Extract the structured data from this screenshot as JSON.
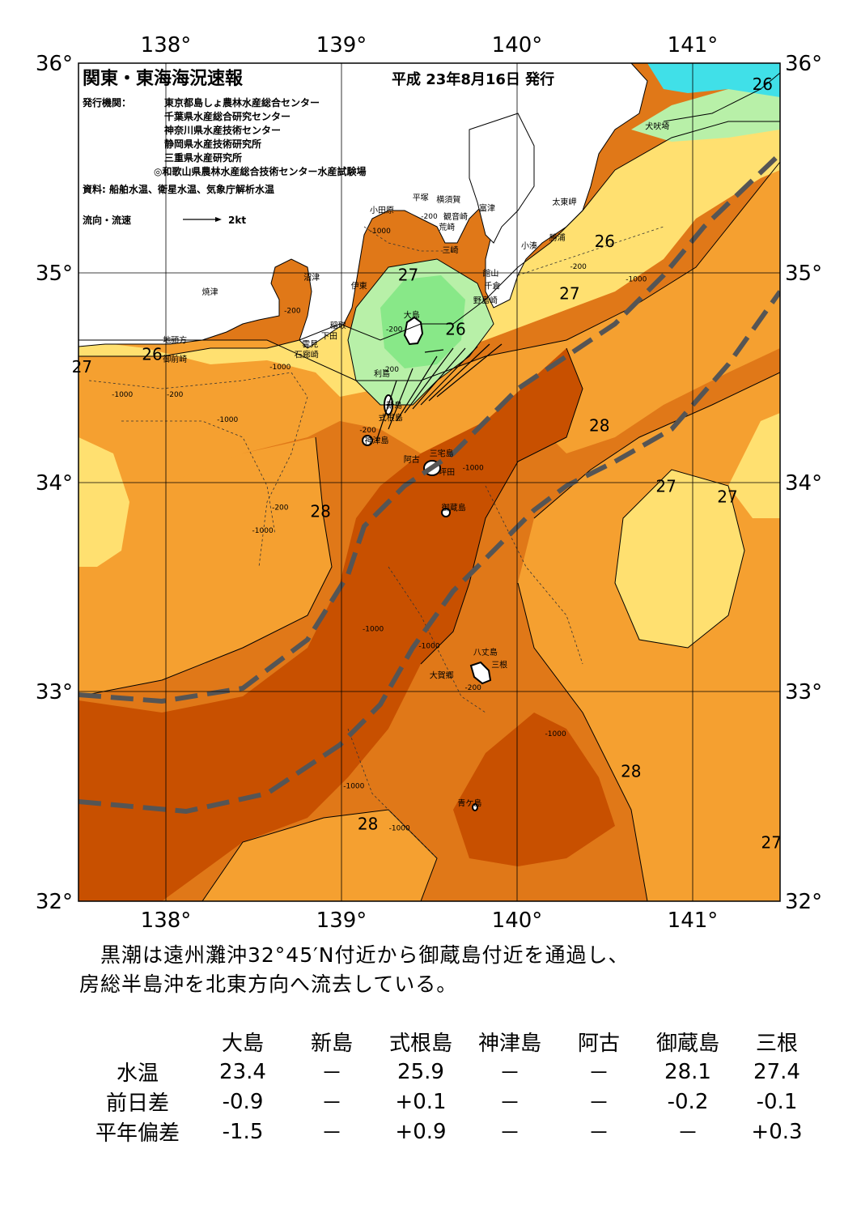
{
  "header": {
    "title": "関東・東海海況速報",
    "issue_date": "平成 23年8月16日 発行",
    "issuer_label": "発行機関：",
    "issuers": [
      "東京都島しょ農林水産総合センター",
      "千葉県水産総合研究センター",
      "神奈川県水産技術センター",
      "静岡県水産技術研究所",
      "三重県水産研究所",
      "◎和歌山県農林水産総合技術センター水産試験場"
    ],
    "sources": "資料: 船舶水温、衛星水温、気象庁解析水温",
    "flow_legend_label": "流向・流速",
    "flow_legend_speed": "2kt"
  },
  "axes": {
    "lon_labels": [
      "138°",
      "139°",
      "140°",
      "141°"
    ],
    "lat_labels": [
      "36°",
      "35°",
      "34°",
      "33°",
      "32°"
    ],
    "lon_range": [
      137.5,
      141.5
    ],
    "lat_range": [
      32,
      36
    ]
  },
  "colors": {
    "t24_25": "#88e888",
    "t25_26": "#b8f0a8",
    "t26_27": "#ffe070",
    "t27_28": "#f5a030",
    "t28_29": "#e07818",
    "t29": "#c85000",
    "land": "#ffffff",
    "cold": "#40e0e8",
    "kuroshio_axis": "#555555"
  },
  "isotherm_labels": [
    {
      "text": "26",
      "lon": 141.4,
      "lat": 35.9
    },
    {
      "text": "26",
      "lon": 140.5,
      "lat": 35.15
    },
    {
      "text": "27",
      "lon": 139.38,
      "lat": 34.99
    },
    {
      "text": "27",
      "lon": 140.3,
      "lat": 34.9
    },
    {
      "text": "26",
      "lon": 139.65,
      "lat": 34.73
    },
    {
      "text": "26",
      "lon": 137.92,
      "lat": 34.61
    },
    {
      "text": "27",
      "lon": 137.52,
      "lat": 34.55
    },
    {
      "text": "28",
      "lon": 140.47,
      "lat": 34.27
    },
    {
      "text": "27",
      "lon": 140.85,
      "lat": 33.98
    },
    {
      "text": "27",
      "lon": 141.2,
      "lat": 33.93
    },
    {
      "text": "28",
      "lon": 138.88,
      "lat": 33.86
    },
    {
      "text": "28",
      "lon": 140.65,
      "lat": 32.62
    },
    {
      "text": "28",
      "lon": 139.15,
      "lat": 32.37
    },
    {
      "text": "27",
      "lon": 141.45,
      "lat": 32.28
    }
  ],
  "places": [
    {
      "name": "犬吠埼",
      "lon": 140.8,
      "lat": 35.7
    },
    {
      "name": "太東岬",
      "lon": 140.27,
      "lat": 35.34
    },
    {
      "name": "勝浦",
      "lon": 140.23,
      "lat": 35.17
    },
    {
      "name": "小湊",
      "lon": 140.07,
      "lat": 35.13
    },
    {
      "name": "富津",
      "lon": 139.83,
      "lat": 35.31
    },
    {
      "name": "横須賀",
      "lon": 139.61,
      "lat": 35.35
    },
    {
      "name": "平塚",
      "lon": 139.45,
      "lat": 35.36
    },
    {
      "name": "小田原",
      "lon": 139.23,
      "lat": 35.3
    },
    {
      "name": "観音崎",
      "lon": 139.65,
      "lat": 35.27
    },
    {
      "name": "荒崎",
      "lon": 139.6,
      "lat": 35.22
    },
    {
      "name": "三崎",
      "lon": 139.62,
      "lat": 35.11
    },
    {
      "name": "館山",
      "lon": 139.85,
      "lat": 35.0
    },
    {
      "name": "千倉",
      "lon": 139.86,
      "lat": 34.94
    },
    {
      "name": "野島崎",
      "lon": 139.82,
      "lat": 34.87
    },
    {
      "name": "沼津",
      "lon": 138.83,
      "lat": 34.98
    },
    {
      "name": "伊東",
      "lon": 139.1,
      "lat": 34.94
    },
    {
      "name": "焼津",
      "lon": 138.25,
      "lat": 34.91
    },
    {
      "name": "稲取",
      "lon": 138.98,
      "lat": 34.75
    },
    {
      "name": "下田",
      "lon": 138.93,
      "lat": 34.7
    },
    {
      "name": "雲見",
      "lon": 138.82,
      "lat": 34.66
    },
    {
      "name": "石廊崎",
      "lon": 138.8,
      "lat": 34.61
    },
    {
      "name": "地頭方",
      "lon": 138.05,
      "lat": 34.68
    },
    {
      "name": "御前崎",
      "lon": 138.05,
      "lat": 34.59
    },
    {
      "name": "大島",
      "lon": 139.4,
      "lat": 34.8
    },
    {
      "name": "利島",
      "lon": 139.23,
      "lat": 34.52
    },
    {
      "name": "新島",
      "lon": 139.3,
      "lat": 34.37
    },
    {
      "name": "式根島",
      "lon": 139.28,
      "lat": 34.31
    },
    {
      "name": "神津島",
      "lon": 139.2,
      "lat": 34.2
    },
    {
      "name": "三宅島",
      "lon": 139.57,
      "lat": 34.14
    },
    {
      "name": "阿古",
      "lon": 139.4,
      "lat": 34.11
    },
    {
      "name": "坪田",
      "lon": 139.6,
      "lat": 34.05
    },
    {
      "name": "御蔵島",
      "lon": 139.64,
      "lat": 33.88
    },
    {
      "name": "八丈島",
      "lon": 139.82,
      "lat": 33.19
    },
    {
      "name": "三根",
      "lon": 139.9,
      "lat": 33.13
    },
    {
      "name": "大賀郷",
      "lon": 139.57,
      "lat": 33.08
    },
    {
      "name": "青ケ島",
      "lon": 139.73,
      "lat": 32.47
    }
  ],
  "depth_labels": [
    {
      "text": "-200",
      "lon": 139.5,
      "lat": 35.27
    },
    {
      "text": "-1000",
      "lon": 139.22,
      "lat": 35.2
    },
    {
      "text": "-200",
      "lon": 140.35,
      "lat": 35.03
    },
    {
      "text": "-1000",
      "lon": 140.68,
      "lat": 34.97
    },
    {
      "text": "-200",
      "lon": 138.72,
      "lat": 34.82
    },
    {
      "text": "-200",
      "lon": 139.3,
      "lat": 34.73
    },
    {
      "text": "-200",
      "lon": 139.28,
      "lat": 34.54
    },
    {
      "text": "-1000",
      "lon": 138.65,
      "lat": 34.55
    },
    {
      "text": "-1000",
      "lon": 137.75,
      "lat": 34.42
    },
    {
      "text": "-200",
      "lon": 138.05,
      "lat": 34.42
    },
    {
      "text": "-1000",
      "lon": 138.35,
      "lat": 34.3
    },
    {
      "text": "-200",
      "lon": 139.15,
      "lat": 34.25
    },
    {
      "text": "-1000",
      "lon": 139.75,
      "lat": 34.07
    },
    {
      "text": "-200",
      "lon": 138.65,
      "lat": 33.88
    },
    {
      "text": "-1000",
      "lon": 138.55,
      "lat": 33.77
    },
    {
      "text": "-1000",
      "lon": 139.18,
      "lat": 33.3
    },
    {
      "text": "-1000",
      "lon": 139.5,
      "lat": 33.22
    },
    {
      "text": "-200",
      "lon": 139.75,
      "lat": 33.02
    },
    {
      "text": "-1000",
      "lon": 140.22,
      "lat": 32.8
    },
    {
      "text": "-1000",
      "lon": 139.07,
      "lat": 32.55
    },
    {
      "text": "-1000",
      "lon": 139.33,
      "lat": 32.35
    }
  ],
  "summary": [
    "　黒潮は遠州灘沖32°45′N付近から御蔵島付近を通過し、",
    "房総半島沖を北東方向へ流去している。"
  ],
  "observations": {
    "stations": [
      "大島",
      "新島",
      "式根島",
      "神津島",
      "阿古",
      "御蔵島",
      "三根"
    ],
    "rows": [
      {
        "label": "水温",
        "values": [
          "23.4",
          "－",
          "25.9",
          "－",
          "－",
          "28.1",
          "27.4"
        ]
      },
      {
        "label": "前日差",
        "values": [
          "-0.9",
          "－",
          "+0.1",
          "－",
          "－",
          "-0.2",
          "-0.1"
        ]
      },
      {
        "label": "平年偏差",
        "values": [
          "-1.5",
          "－",
          "+0.9",
          "－",
          "－",
          "－",
          "+0.3"
        ]
      }
    ]
  }
}
